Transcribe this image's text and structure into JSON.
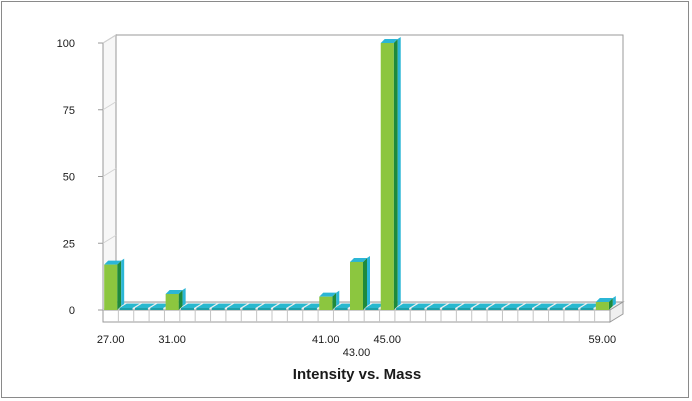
{
  "chart_data": {
    "type": "bar",
    "title": "Intensity vs. Mass",
    "xlabel": "",
    "ylabel": "",
    "ylim": [
      0,
      100
    ],
    "yticks": [
      0,
      25,
      50,
      75,
      100
    ],
    "grid": false,
    "x_start": 27,
    "x_end": 59,
    "x_tick_labels": [
      "27.00",
      "31.00",
      "41.00",
      "43.00",
      "45.00",
      "59.00"
    ],
    "x_tick_masses": [
      27,
      31,
      41,
      43,
      45,
      59
    ],
    "nonzero_masses": [
      27,
      31,
      41,
      43,
      45,
      59
    ],
    "nonzero_values": [
      17,
      6,
      5,
      18,
      100,
      3
    ],
    "colors": {
      "front": "#8cc63f",
      "side": "#1e8a3c",
      "top": "#2bb6d6",
      "zero_front": "#1fa0a8",
      "zero_top": "#28b8cf",
      "axis": "#9a9a9a"
    }
  }
}
